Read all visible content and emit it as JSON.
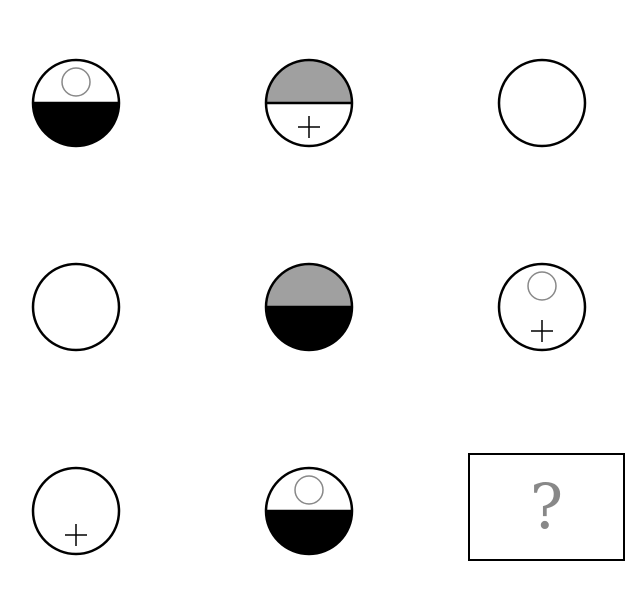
{
  "puzzle": {
    "answer_placeholder": "?",
    "colors": {
      "stroke": "#000000",
      "gray_fill": "#a0a0a0",
      "black_fill": "#000000",
      "white_fill": "#ffffff",
      "small_circle": "#888888",
      "question_mark": "#888888"
    },
    "cells": [
      {
        "row": 1,
        "col": 1,
        "top": "white",
        "bottom": "black",
        "small_circle": true,
        "plus": false
      },
      {
        "row": 1,
        "col": 2,
        "top": "gray",
        "bottom": "white",
        "small_circle": false,
        "plus": true
      },
      {
        "row": 1,
        "col": 3,
        "top": "white",
        "bottom": "white",
        "small_circle": false,
        "plus": false
      },
      {
        "row": 2,
        "col": 1,
        "top": "white",
        "bottom": "white",
        "small_circle": false,
        "plus": false
      },
      {
        "row": 2,
        "col": 2,
        "top": "gray",
        "bottom": "black",
        "small_circle": false,
        "plus": false
      },
      {
        "row": 2,
        "col": 3,
        "top": "white",
        "bottom": "white",
        "small_circle": true,
        "plus": true
      },
      {
        "row": 3,
        "col": 1,
        "top": "white",
        "bottom": "white",
        "small_circle": false,
        "plus": true
      },
      {
        "row": 3,
        "col": 2,
        "top": "white",
        "bottom": "black",
        "small_circle": true,
        "plus": false
      }
    ]
  }
}
